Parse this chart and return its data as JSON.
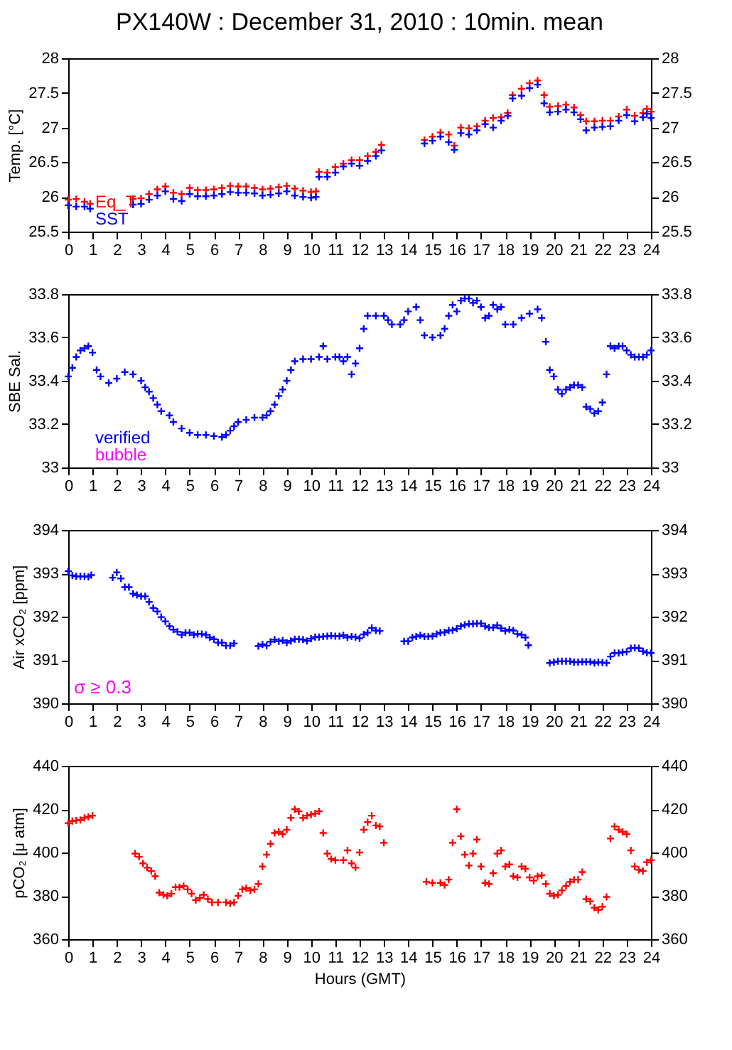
{
  "chart_data": [
    {
      "type": "scatter",
      "title": "PX140W : December 31, 2010 : 10min. mean",
      "ylabel": "Temp. [°C]",
      "marker": "cross",
      "legend": "bottom left",
      "xlim": [
        0,
        24
      ],
      "xticks": [
        0,
        1,
        2,
        3,
        4,
        5,
        6,
        7,
        8,
        9,
        10,
        11,
        12,
        13,
        14,
        15,
        16,
        17,
        18,
        19,
        20,
        21,
        22,
        23,
        24
      ],
      "ylim": [
        25.5,
        28
      ],
      "yticks": [
        25.5,
        26,
        26.5,
        27,
        27.5,
        28
      ],
      "y2lim": [
        25.5,
        28
      ],
      "y2ticks": [
        25.5,
        26,
        26.5,
        27,
        27.5,
        28
      ],
      "x": [
        0,
        0.33,
        0.67,
        0.9,
        2.67,
        3,
        3.33,
        3.67,
        4,
        4.33,
        4.67,
        5,
        5.33,
        5.67,
        6,
        6.33,
        6.67,
        7,
        7.33,
        7.67,
        8,
        8.33,
        8.67,
        9,
        9.33,
        9.67,
        10,
        10.2,
        10.33,
        10.67,
        11,
        11.33,
        11.67,
        12,
        12.33,
        12.67,
        12.9,
        14.67,
        15,
        15.33,
        15.67,
        15.9,
        16.17,
        16.5,
        16.83,
        17.17,
        17.5,
        17.83,
        18.1,
        18.3,
        18.67,
        19,
        19.33,
        19.6,
        19.83,
        20.17,
        20.5,
        20.83,
        21.1,
        21.33,
        21.67,
        22,
        22.33,
        22.67,
        23,
        23.33,
        23.67,
        23.83,
        24
      ],
      "series": [
        {
          "name": "Eq_T",
          "color": "#ff0000",
          "values": [
            25.96,
            25.97,
            25.93,
            25.9,
            25.97,
            25.98,
            26.04,
            26.11,
            26.15,
            26.06,
            26.04,
            26.13,
            26.1,
            26.1,
            26.11,
            26.13,
            26.16,
            26.15,
            26.15,
            26.13,
            26.11,
            26.12,
            26.14,
            26.16,
            26.12,
            26.09,
            26.07,
            26.08,
            26.36,
            26.35,
            26.43,
            26.48,
            26.53,
            26.53,
            26.59,
            26.65,
            26.75,
            26.82,
            26.87,
            26.93,
            26.9,
            26.74,
            27,
            26.99,
            27.02,
            27.1,
            27.14,
            27.15,
            27.21,
            27.47,
            27.56,
            27.64,
            27.68,
            27.47,
            27.3,
            27.31,
            27.33,
            27.29,
            27.18,
            27.09,
            27.09,
            27.1,
            27.1,
            27.16,
            27.26,
            27.17,
            27.21,
            27.27,
            27.23
          ]
        },
        {
          "name": "SST",
          "color": "#0000ff",
          "values": [
            25.88,
            25.86,
            25.86,
            25.83,
            25.89,
            25.9,
            25.96,
            26.02,
            26.08,
            25.97,
            25.94,
            26.04,
            26.01,
            26.01,
            26.02,
            26.04,
            26.07,
            26.06,
            26.06,
            26.05,
            26.02,
            26.03,
            26.05,
            26.08,
            26.02,
            26,
            25.99,
            26,
            26.29,
            26.29,
            26.35,
            26.44,
            26.48,
            26.45,
            26.52,
            26.59,
            26.67,
            26.77,
            26.81,
            26.87,
            26.79,
            26.68,
            26.92,
            26.9,
            26.96,
            27.05,
            27,
            27.1,
            27.17,
            27.42,
            27.46,
            27.57,
            27.62,
            27.35,
            27.22,
            27.23,
            27.26,
            27.22,
            27.12,
            26.96,
            27,
            27.01,
            27.02,
            27.1,
            27.18,
            27.09,
            27.15,
            27.2,
            27.14
          ]
        }
      ]
    },
    {
      "type": "scatter",
      "ylabel": "SBE Sal.",
      "marker": "cross",
      "legend": "bottom left",
      "xlim": [
        0,
        24
      ],
      "xticks": [
        0,
        1,
        2,
        3,
        4,
        5,
        6,
        7,
        8,
        9,
        10,
        11,
        12,
        13,
        14,
        15,
        16,
        17,
        18,
        19,
        20,
        21,
        22,
        23,
        24
      ],
      "ylim": [
        33,
        33.8
      ],
      "yticks": [
        33,
        33.2,
        33.4,
        33.6,
        33.8
      ],
      "y2lim": [
        33,
        33.8
      ],
      "y2ticks": [
        33,
        33.2,
        33.4,
        33.6,
        33.8
      ],
      "series": [
        {
          "name": "verified",
          "color": "#0000ff",
          "x": [
            0,
            0.17,
            0.33,
            0.5,
            0.67,
            0.83,
            1,
            1.17,
            1.33,
            1.67,
            2,
            2.33,
            2.67,
            3,
            3.17,
            3.33,
            3.5,
            3.67,
            3.83,
            4.17,
            4.33,
            4.67,
            5,
            5.33,
            5.67,
            6,
            6.33,
            6.5,
            6.67,
            6.83,
            7,
            7.33,
            7.67,
            8,
            8.17,
            8.33,
            8.5,
            8.67,
            8.83,
            9,
            9.17,
            9.33,
            9.67,
            10,
            10.33,
            10.5,
            10.67,
            11,
            11.17,
            11.33,
            11.5,
            11.67,
            11.83,
            12,
            12.17,
            12.33,
            12.67,
            13,
            13.17,
            13.33,
            13.67,
            13.83,
            14,
            14.33,
            14.5,
            14.67,
            15,
            15.33,
            15.5,
            15.67,
            15.83,
            16,
            16.17,
            16.33,
            16.5,
            16.67,
            16.83,
            17,
            17.17,
            17.33,
            17.5,
            17.67,
            17.83,
            18,
            18.33,
            18.67,
            19,
            19.33,
            19.5,
            19.67,
            19.83,
            20,
            20.17,
            20.33,
            20.5,
            20.67,
            20.83,
            21,
            21.17,
            21.33,
            21.5,
            21.67,
            21.83,
            22,
            22.17,
            22.33,
            22.5,
            22.67,
            22.83,
            23,
            23.17,
            23.33,
            23.5,
            23.67,
            23.83,
            24
          ],
          "values": [
            33.42,
            33.46,
            33.51,
            33.54,
            33.55,
            33.56,
            33.53,
            33.45,
            33.42,
            33.39,
            33.41,
            33.44,
            33.43,
            33.4,
            33.37,
            33.35,
            33.32,
            33.29,
            33.26,
            33.24,
            33.21,
            33.18,
            33.16,
            33.15,
            33.15,
            33.145,
            33.14,
            33.15,
            33.17,
            33.19,
            33.21,
            33.22,
            33.23,
            33.23,
            33.24,
            33.26,
            33.29,
            33.33,
            33.36,
            33.4,
            33.45,
            33.49,
            33.5,
            33.5,
            33.51,
            33.56,
            33.5,
            33.51,
            33.51,
            33.49,
            33.51,
            33.43,
            33.48,
            33.55,
            33.64,
            33.7,
            33.7,
            33.7,
            33.68,
            33.66,
            33.66,
            33.68,
            33.72,
            33.74,
            33.68,
            33.61,
            33.6,
            33.61,
            33.64,
            33.7,
            33.75,
            33.72,
            33.77,
            33.78,
            33.78,
            33.76,
            33.77,
            33.74,
            33.69,
            33.7,
            33.75,
            33.73,
            33.74,
            33.66,
            33.66,
            33.69,
            33.71,
            33.73,
            33.69,
            33.58,
            33.45,
            33.42,
            33.36,
            33.34,
            33.36,
            33.37,
            33.38,
            33.38,
            33.37,
            33.28,
            33.27,
            33.25,
            33.26,
            33.3,
            33.43,
            33.56,
            33.55,
            33.56,
            33.56,
            33.54,
            33.52,
            33.51,
            33.51,
            33.51,
            33.52,
            33.54
          ]
        },
        {
          "name": "bubble",
          "color": "#ff00ff"
        }
      ]
    },
    {
      "type": "scatter",
      "ylabel": "Air xCO₂ [ppm]",
      "marker": "cross",
      "annotations": [
        "σ ≥ 0.3"
      ],
      "xlim": [
        0,
        24
      ],
      "xticks": [
        0,
        1,
        2,
        3,
        4,
        5,
        6,
        7,
        8,
        9,
        10,
        11,
        12,
        13,
        14,
        15,
        16,
        17,
        18,
        19,
        20,
        21,
        22,
        23,
        24
      ],
      "ylim": [
        390,
        394
      ],
      "yticks": [
        390,
        391,
        392,
        393,
        394
      ],
      "y2lim": [
        390,
        394
      ],
      "y2ticks": [
        390,
        391,
        392,
        393,
        394
      ],
      "series": [
        {
          "color": "#0000ff",
          "x": [
            0,
            0.17,
            0.33,
            0.5,
            0.67,
            0.83,
            0.95,
            1.83,
            2,
            2.17,
            2.33,
            2.5,
            2.67,
            2.83,
            3,
            3.17,
            3.33,
            3.5,
            3.67,
            3.83,
            4,
            4.17,
            4.33,
            4.5,
            4.67,
            4.83,
            5,
            5.17,
            5.33,
            5.5,
            5.67,
            5.83,
            6,
            6.17,
            6.33,
            6.5,
            6.67,
            6.83,
            7.83,
            8,
            8.17,
            8.33,
            8.5,
            8.67,
            8.83,
            9,
            9.17,
            9.33,
            9.5,
            9.67,
            9.83,
            10,
            10.17,
            10.33,
            10.5,
            10.67,
            10.83,
            11,
            11.17,
            11.33,
            11.5,
            11.67,
            11.83,
            12,
            12.17,
            12.33,
            12.5,
            12.67,
            12.83,
            13.83,
            14,
            14.17,
            14.33,
            14.5,
            14.67,
            14.83,
            15,
            15.17,
            15.33,
            15.5,
            15.67,
            15.83,
            16,
            16.17,
            16.33,
            16.5,
            16.67,
            16.83,
            17,
            17.17,
            17.33,
            17.5,
            17.67,
            17.83,
            18,
            18.17,
            18.33,
            18.5,
            18.67,
            18.83,
            18.95,
            19.83,
            20,
            20.17,
            20.33,
            20.5,
            20.67,
            20.83,
            21,
            21.17,
            21.33,
            21.5,
            21.67,
            21.83,
            22,
            22.17,
            22.33,
            22.5,
            22.67,
            22.83,
            23,
            23.17,
            23.33,
            23.5,
            23.67,
            23.83,
            24
          ],
          "values": [
            393.05,
            392.95,
            392.93,
            392.93,
            392.93,
            392.92,
            392.96,
            392.9,
            393.02,
            392.88,
            392.68,
            392.68,
            392.53,
            392.5,
            392.47,
            392.47,
            392.34,
            392.2,
            392.12,
            391.99,
            391.89,
            391.78,
            391.7,
            391.65,
            391.58,
            391.63,
            391.63,
            391.58,
            391.6,
            391.6,
            391.58,
            391.52,
            391.48,
            391.4,
            391.4,
            391.33,
            391.33,
            391.38,
            391.32,
            391.36,
            391.33,
            391.42,
            391.47,
            391.43,
            391.45,
            391.4,
            391.44,
            391.48,
            391.48,
            391.47,
            391.44,
            391.49,
            391.53,
            391.53,
            391.54,
            391.55,
            391.56,
            391.55,
            391.55,
            391.57,
            391.52,
            391.54,
            391.53,
            391.5,
            391.59,
            391.63,
            391.74,
            391.68,
            391.67,
            391.43,
            391.43,
            391.52,
            391.54,
            391.57,
            391.54,
            391.54,
            391.55,
            391.6,
            391.63,
            391.64,
            391.68,
            391.69,
            391.72,
            391.78,
            391.81,
            391.83,
            391.83,
            391.84,
            391.84,
            391.78,
            391.75,
            391.75,
            391.8,
            391.73,
            391.67,
            391.7,
            391.68,
            391.6,
            391.58,
            391.52,
            391.34,
            390.93,
            390.95,
            390.97,
            390.97,
            390.97,
            390.97,
            390.95,
            390.95,
            390.96,
            390.96,
            390.96,
            390.93,
            390.95,
            390.94,
            390.93,
            391.08,
            391.16,
            391.16,
            391.18,
            391.19,
            391.27,
            391.28,
            391.27,
            391.2,
            391.17,
            391.16
          ]
        }
      ]
    },
    {
      "type": "scatter",
      "xlabel": "Hours (GMT)",
      "ylabel": "pCO₂ [μ atm]",
      "marker": "cross",
      "xlim": [
        0,
        24
      ],
      "xticks": [
        0,
        1,
        2,
        3,
        4,
        5,
        6,
        7,
        8,
        9,
        10,
        11,
        12,
        13,
        14,
        15,
        16,
        17,
        18,
        19,
        20,
        21,
        22,
        23,
        24
      ],
      "ylim": [
        360,
        440
      ],
      "yticks": [
        360,
        380,
        400,
        420,
        440
      ],
      "y2lim": [
        360,
        440
      ],
      "y2ticks": [
        360,
        380,
        400,
        420,
        440
      ],
      "series": [
        {
          "color": "#ff0000",
          "x": [
            0,
            0.17,
            0.33,
            0.5,
            0.67,
            0.83,
            1,
            2.75,
            2.92,
            3.08,
            3.25,
            3.42,
            3.58,
            3.75,
            3.92,
            4.08,
            4.25,
            4.42,
            4.58,
            4.75,
            4.92,
            5.08,
            5.25,
            5.42,
            5.58,
            5.75,
            5.92,
            6.17,
            6.5,
            6.67,
            6.83,
            7,
            7.17,
            7.33,
            7.5,
            7.67,
            7.83,
            8,
            8.17,
            8.33,
            8.5,
            8.67,
            8.83,
            9,
            9.17,
            9.33,
            9.5,
            9.67,
            9.83,
            10,
            10.17,
            10.33,
            10.5,
            10.67,
            10.83,
            11,
            11.33,
            11.5,
            11.67,
            11.83,
            12,
            12.17,
            12.33,
            12.5,
            12.67,
            12.83,
            13,
            14.75,
            15,
            15.33,
            15.5,
            15.67,
            15.83,
            16,
            16.17,
            16.33,
            16.5,
            16.67,
            16.83,
            17,
            17.17,
            17.33,
            17.5,
            17.67,
            17.83,
            18,
            18.17,
            18.33,
            18.5,
            18.67,
            18.83,
            19,
            19.17,
            19.33,
            19.5,
            19.67,
            19.83,
            20,
            20.17,
            20.33,
            20.5,
            20.67,
            20.83,
            21,
            21.17,
            21.33,
            21.5,
            21.67,
            21.83,
            22,
            22.17,
            22.33,
            22.5,
            22.67,
            22.83,
            23,
            23.17,
            23.33,
            23.5,
            23.67,
            23.83,
            24
          ],
          "values": [
            413.5,
            414.5,
            414.8,
            415,
            416,
            416.5,
            417,
            399.5,
            398,
            395,
            393,
            391.5,
            389,
            381.5,
            380.5,
            380,
            381,
            384,
            384,
            384.5,
            383,
            381,
            378,
            379,
            380.5,
            378.5,
            377,
            377,
            377,
            376.5,
            377,
            380,
            383,
            383.5,
            382.5,
            383,
            385.5,
            393.5,
            399,
            404,
            409,
            409.5,
            408.5,
            410.5,
            416,
            420,
            419,
            416,
            417,
            417.5,
            418,
            419,
            409,
            399.5,
            397,
            396.5,
            396.5,
            401,
            395,
            393,
            400,
            410.5,
            414,
            417,
            412.5,
            412,
            404.5,
            386.5,
            386,
            386,
            385,
            387.5,
            404.5,
            420,
            407.5,
            399,
            394,
            399.5,
            406,
            393.5,
            386,
            385.5,
            390.5,
            399.5,
            401,
            393.5,
            394.5,
            389,
            388.5,
            393.5,
            392.5,
            388.5,
            387,
            389,
            389.5,
            385.5,
            381,
            380,
            380.5,
            382.5,
            384.5,
            386.5,
            387.5,
            387.5,
            391,
            378.5,
            377.5,
            374.5,
            373.5,
            375,
            379.5,
            406.5,
            412,
            410.5,
            409.5,
            408.5,
            401,
            393.5,
            392,
            391.5,
            395.5,
            396.5
          ]
        }
      ]
    }
  ]
}
